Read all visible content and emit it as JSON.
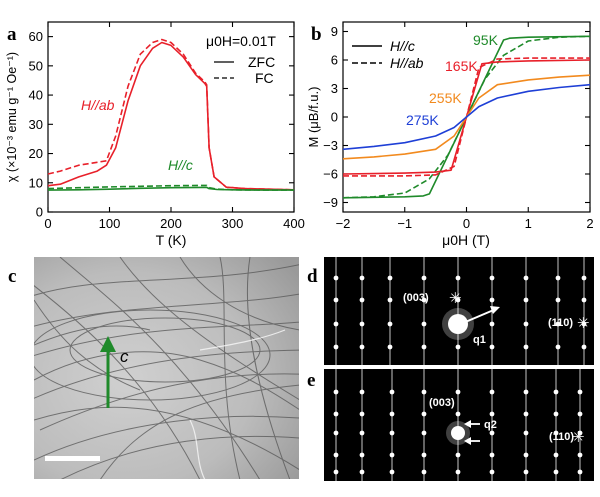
{
  "panels": {
    "a": {
      "letter": "a",
      "legend_title": "μ0H=0.01T",
      "legend_zfc": "ZFC",
      "legend_fc": "FC",
      "curve_label_hab": "H//ab",
      "curve_label_hc": "H//c",
      "ylabel": "χ (×10⁻³ emu g⁻¹ Oe⁻¹)",
      "xlabel": "T (K)"
    },
    "b": {
      "letter": "b",
      "legend_solid": "H//c",
      "legend_dashed": "H//ab",
      "ylabel": "M (μB/f.u.)",
      "xlabel": "μ0H (T)",
      "temp_labels": [
        "95K",
        "165K",
        "255K",
        "275K"
      ]
    },
    "c": {
      "letter": "c",
      "arrow_label": "c"
    },
    "d": {
      "letter": "d",
      "spot_003": "(003)",
      "spot_110": "(110)",
      "vector_label": "q1"
    },
    "e": {
      "letter": "e",
      "spot_003": "(003)",
      "spot_110": "(110)",
      "vector_label": "q2"
    }
  },
  "chart_data": [
    {
      "type": "line",
      "title": "",
      "xlabel": "T (K)",
      "ylabel": "χ (×10⁻³ emu g⁻¹ Oe⁻¹)",
      "xlim": [
        0,
        400
      ],
      "ylim": [
        0,
        65
      ],
      "xticks": [
        0,
        100,
        200,
        300,
        400
      ],
      "yticks": [
        0,
        10,
        20,
        30,
        40,
        50,
        60
      ],
      "grid": false,
      "legend": "top-right",
      "series": [
        {
          "name": "H//ab",
          "style": "ZFC",
          "color": "#e8202a",
          "x": [
            0,
            20,
            50,
            80,
            95,
            110,
            130,
            150,
            170,
            185,
            200,
            220,
            240,
            255,
            258,
            262,
            270,
            290,
            320,
            360,
            400
          ],
          "y": [
            9,
            9.5,
            12,
            14,
            16,
            22,
            38,
            50,
            56,
            58,
            57,
            53,
            47,
            44,
            43,
            22,
            12,
            8.5,
            8,
            7.8,
            7.6
          ]
        },
        {
          "name": "H//ab",
          "style": "FC",
          "color": "#e8202a",
          "x": [
            0,
            20,
            50,
            80,
            95,
            110,
            130,
            150,
            170,
            185,
            200,
            220,
            240,
            255,
            258,
            262,
            270,
            290,
            320,
            360,
            400
          ],
          "y": [
            13,
            14,
            16,
            17,
            17.5,
            26,
            43,
            54,
            58,
            59,
            58,
            54,
            47.5,
            44.5,
            43.5,
            22,
            12,
            8.5,
            8,
            7.8,
            7.6
          ]
        },
        {
          "name": "H//c",
          "style": "ZFC",
          "color": "#1f8a2a",
          "x": [
            0,
            50,
            100,
            150,
            200,
            250,
            258,
            262,
            275,
            300,
            350,
            400
          ],
          "y": [
            7.5,
            7.6,
            7.8,
            8.1,
            8.3,
            8.4,
            8.4,
            8,
            7.7,
            7.6,
            7.5,
            7.5
          ]
        },
        {
          "name": "H//c",
          "style": "FC",
          "color": "#1f8a2a",
          "x": [
            0,
            50,
            100,
            150,
            200,
            250,
            258,
            262,
            275,
            300,
            350,
            400
          ],
          "y": [
            8,
            8.3,
            8.6,
            8.8,
            9,
            9.1,
            9.1,
            8.3,
            7.8,
            7.6,
            7.5,
            7.5
          ]
        }
      ]
    },
    {
      "type": "line",
      "title": "",
      "xlabel": "μ0H (T)",
      "ylabel": "M (μB/f.u.)",
      "xlim": [
        -2,
        2
      ],
      "ylim": [
        -10,
        10
      ],
      "xticks": [
        -2,
        -1,
        0,
        1,
        2
      ],
      "yticks": [
        -9,
        -6,
        -3,
        0,
        3,
        6,
        9
      ],
      "grid": false,
      "legend": "top-left",
      "series": [
        {
          "name": "95K",
          "style": "H//c",
          "color": "#1f8a2a",
          "x": [
            -2,
            -1,
            -0.7,
            -0.6,
            0,
            0.6,
            0.7,
            1,
            2
          ],
          "y": [
            -8.5,
            -8.4,
            -8.3,
            -8.1,
            0,
            8.1,
            8.3,
            8.4,
            8.5
          ]
        },
        {
          "name": "95K",
          "style": "H//ab",
          "color": "#1f8a2a",
          "x": [
            -2,
            -1.5,
            -1,
            -0.6,
            -0.3,
            0,
            0.3,
            0.6,
            1,
            1.5,
            2
          ],
          "y": [
            -8.5,
            -8.4,
            -8,
            -6.5,
            -4,
            0,
            4,
            6.5,
            8,
            8.4,
            8.5
          ]
        },
        {
          "name": "165K",
          "style": "H//c",
          "color": "#e8202a",
          "x": [
            -2,
            -1,
            -0.5,
            -0.25,
            0,
            0.25,
            0.5,
            1,
            2
          ],
          "y": [
            -6,
            -5.9,
            -5.8,
            -5.6,
            0,
            5.6,
            5.8,
            5.9,
            6
          ]
        },
        {
          "name": "165K",
          "style": "H//ab",
          "color": "#e8202a",
          "x": [
            -2,
            -1,
            -0.5,
            -0.2,
            0,
            0.2,
            0.5,
            1,
            2
          ],
          "y": [
            -6.2,
            -6.2,
            -6.1,
            -5.2,
            0,
            5.2,
            6.1,
            6.2,
            6.2
          ]
        },
        {
          "name": "255K",
          "style": "H//c",
          "color": "#f28a1e",
          "x": [
            -2,
            -1.5,
            -1,
            -0.5,
            -0.2,
            0,
            0.2,
            0.5,
            1,
            1.5,
            2
          ],
          "y": [
            -4.4,
            -4.2,
            -3.9,
            -3.4,
            -2,
            0,
            2,
            3.4,
            3.9,
            4.2,
            4.4
          ]
        },
        {
          "name": "275K",
          "style": "H//c",
          "color": "#1e3fd6",
          "x": [
            -2,
            -1.5,
            -1,
            -0.5,
            -0.2,
            0,
            0.2,
            0.5,
            1,
            1.5,
            2
          ],
          "y": [
            -3.4,
            -3.1,
            -2.7,
            -2,
            -1.1,
            0,
            1.1,
            2,
            2.7,
            3.1,
            3.4
          ]
        }
      ]
    }
  ]
}
